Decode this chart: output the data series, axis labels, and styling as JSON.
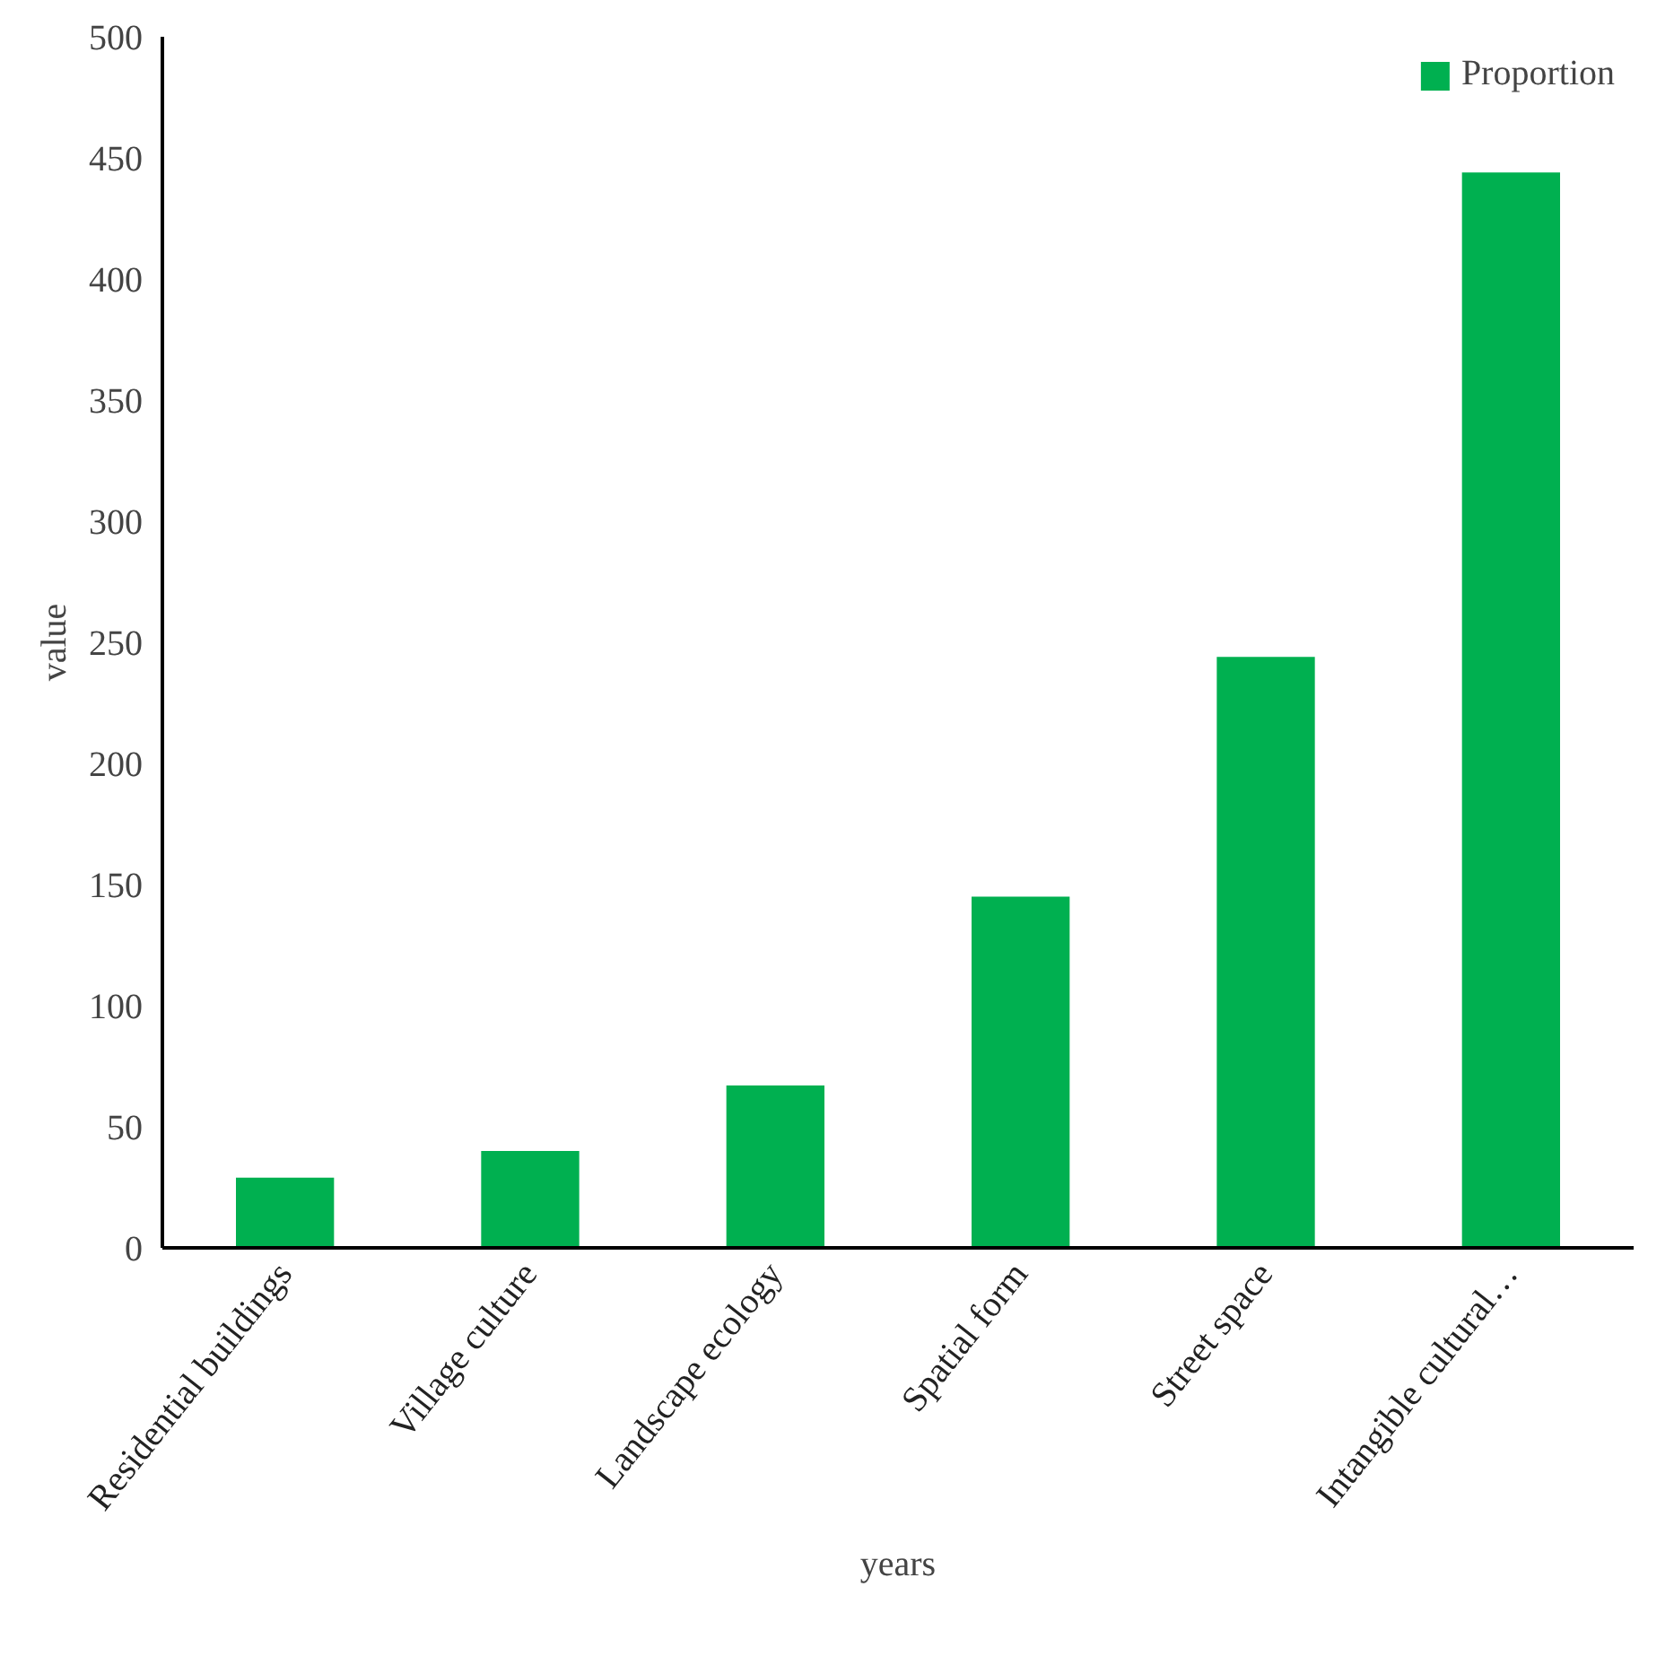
{
  "chart_data": {
    "type": "bar",
    "xlabel": "years",
    "ylabel": "value",
    "categories": [
      "Residential buildings",
      "Village culture",
      "Landscape ecology",
      "Spatial form",
      "Street space",
      "Intangible cultural…"
    ],
    "series": [
      {
        "name": "Proportion",
        "color": "#00b050",
        "values": [
          29,
          40,
          67,
          145,
          244,
          444
        ]
      }
    ],
    "ylim": [
      0,
      500
    ],
    "yticks": [
      0,
      50,
      100,
      150,
      200,
      250,
      300,
      350,
      400,
      450,
      500
    ],
    "grid": false,
    "legend": "top right"
  }
}
